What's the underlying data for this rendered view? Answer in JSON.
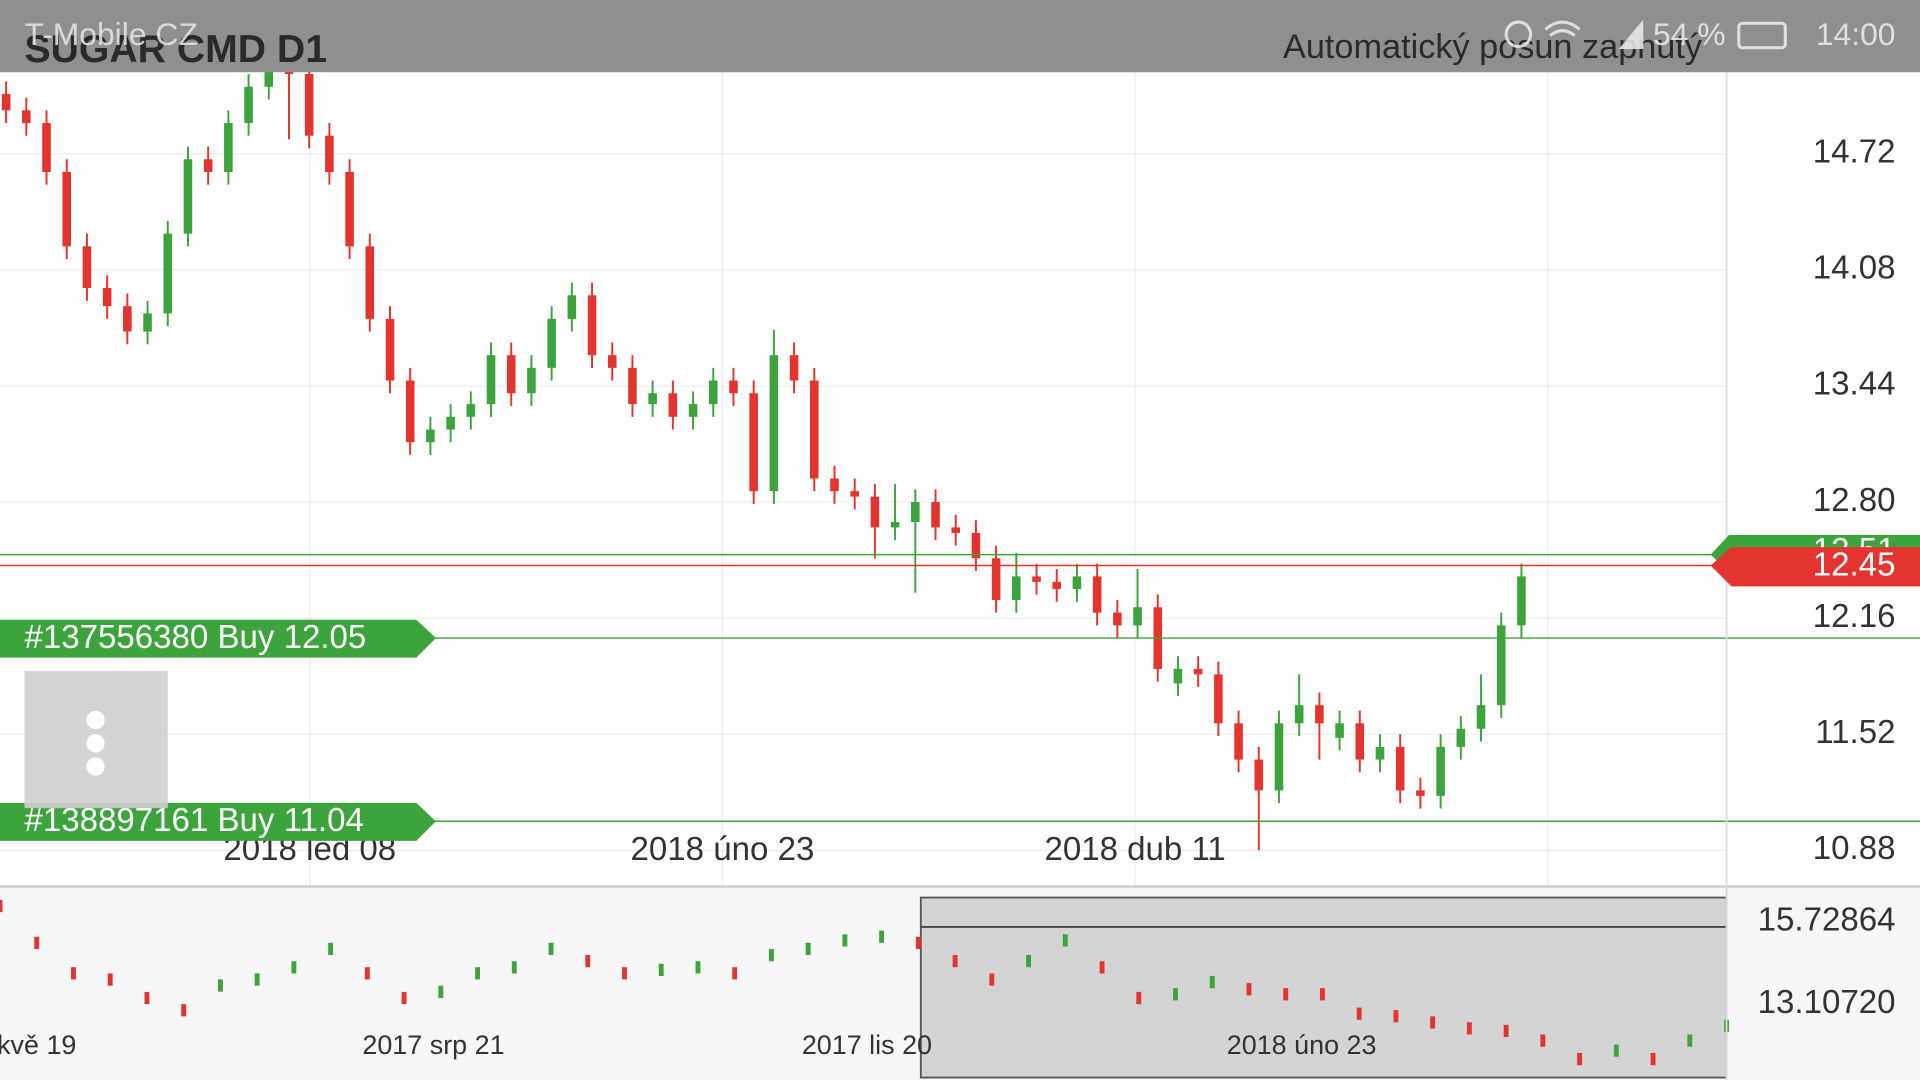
{
  "status_bar": {
    "carrier": "T-Mobile CZ",
    "battery": "54 %",
    "time": "14:00"
  },
  "header": {
    "title": "SUGAR CMD D1",
    "auto_scroll": "Automatický posun zapnutý"
  },
  "chart_data": [
    {
      "type": "candlestick",
      "open": [
        15.05,
        14.96,
        14.89,
        14.62,
        14.21,
        13.98,
        13.88,
        13.74,
        13.84,
        14.28,
        14.69,
        14.62,
        14.89,
        15.09,
        15.19,
        15.16,
        14.82,
        14.62,
        14.21,
        13.81,
        13.47,
        13.13,
        13.2,
        13.27,
        13.34,
        13.61,
        13.4,
        13.54,
        13.81,
        13.94,
        13.61,
        13.54,
        13.34,
        13.4,
        13.27,
        13.34,
        13.47,
        13.4,
        12.86,
        13.61,
        13.47,
        12.93,
        12.86,
        12.83,
        12.66,
        12.69,
        12.8,
        12.66,
        12.63,
        12.49,
        12.26,
        12.39,
        12.36,
        12.32,
        12.39,
        12.19,
        12.12,
        12.22,
        11.8,
        11.88,
        11.85,
        11.58,
        11.38,
        11.21,
        11.58,
        11.68,
        11.5,
        11.58,
        11.38,
        11.45,
        11.21,
        11.18,
        11.45,
        11.55,
        11.68,
        12.12
      ],
      "high": [
        15.12,
        15.03,
        14.96,
        14.69,
        14.28,
        14.05,
        13.95,
        13.91,
        14.35,
        14.76,
        14.76,
        14.96,
        15.16,
        15.26,
        15.26,
        15.23,
        14.89,
        14.69,
        14.28,
        13.88,
        13.54,
        13.27,
        13.34,
        13.41,
        13.68,
        13.68,
        13.61,
        13.88,
        14.01,
        14.01,
        13.68,
        13.61,
        13.47,
        13.47,
        13.41,
        13.54,
        13.54,
        13.47,
        13.75,
        13.68,
        13.54,
        13.0,
        12.93,
        12.9,
        12.9,
        12.87,
        12.87,
        12.73,
        12.7,
        12.56,
        12.52,
        12.46,
        12.43,
        12.46,
        12.46,
        12.26,
        12.43,
        12.29,
        11.95,
        11.95,
        11.92,
        11.65,
        11.45,
        11.65,
        11.85,
        11.75,
        11.65,
        11.65,
        11.52,
        11.52,
        11.28,
        11.52,
        11.62,
        11.85,
        12.19,
        12.46
      ],
      "low": [
        14.89,
        14.82,
        14.55,
        14.14,
        13.91,
        13.81,
        13.67,
        13.67,
        13.77,
        14.21,
        14.55,
        14.55,
        14.82,
        15.02,
        14.8,
        14.75,
        14.55,
        14.14,
        13.74,
        13.4,
        13.06,
        13.06,
        13.13,
        13.2,
        13.27,
        13.33,
        13.33,
        13.47,
        13.74,
        13.54,
        13.47,
        13.27,
        13.27,
        13.2,
        13.2,
        13.27,
        13.33,
        12.79,
        12.79,
        13.4,
        12.86,
        12.79,
        12.76,
        12.49,
        12.59,
        12.3,
        12.59,
        12.56,
        12.42,
        12.19,
        12.19,
        12.29,
        12.25,
        12.25,
        12.12,
        12.05,
        12.05,
        11.81,
        11.73,
        11.78,
        11.51,
        11.31,
        10.88,
        11.14,
        11.51,
        11.38,
        11.43,
        11.31,
        11.31,
        11.14,
        11.11,
        11.11,
        11.38,
        11.48,
        11.61,
        12.05
      ],
      "close": [
        14.96,
        14.89,
        14.62,
        14.21,
        13.98,
        13.88,
        13.74,
        13.84,
        14.28,
        14.69,
        14.62,
        14.89,
        15.09,
        15.19,
        15.16,
        14.82,
        14.62,
        14.21,
        13.81,
        13.47,
        13.13,
        13.2,
        13.27,
        13.34,
        13.61,
        13.4,
        13.54,
        13.81,
        13.94,
        13.61,
        13.54,
        13.34,
        13.4,
        13.27,
        13.34,
        13.47,
        13.4,
        12.86,
        13.61,
        13.47,
        12.93,
        12.86,
        12.83,
        12.66,
        12.69,
        12.8,
        12.66,
        12.63,
        12.49,
        12.26,
        12.39,
        12.36,
        12.32,
        12.39,
        12.19,
        12.12,
        12.22,
        11.88,
        11.88,
        11.85,
        11.58,
        11.38,
        11.21,
        11.58,
        11.68,
        11.58,
        11.58,
        11.38,
        11.45,
        11.21,
        11.18,
        11.45,
        11.55,
        11.68,
        12.12,
        12.39
      ],
      "colors": {
        "up": "#3da33d",
        "down": "#e3342f"
      },
      "ylim": [
        10.68,
        15.17
      ],
      "yticks": [
        14.72,
        14.08,
        13.44,
        {
          "value": 12.8,
          "label": "12.80"
        },
        12.16,
        11.52,
        10.88
      ],
      "grid": true,
      "x_labels": [
        "2018 led 08",
        "2018 úno 23",
        "2018 dub 11"
      ],
      "ask": 12.51,
      "bid": 12.45,
      "orders": [
        {
          "label": "#137556380 Buy 12.05",
          "price": 12.05
        },
        {
          "label": "#138897161 Buy 11.04",
          "price": 11.04
        }
      ]
    },
    {
      "type": "navigator",
      "values": [
        16.24,
        15.06,
        14.09,
        13.89,
        13.3,
        12.91,
        13.7,
        13.89,
        14.28,
        14.87,
        14.09,
        13.3,
        13.5,
        14.09,
        14.28,
        14.87,
        14.48,
        14.09,
        14.2,
        14.28,
        14.09,
        14.67,
        14.87,
        15.14,
        15.26,
        15.06,
        14.48,
        13.89,
        14.48,
        15.14,
        14.28,
        13.3,
        13.42,
        13.81,
        13.58,
        13.42,
        13.42,
        12.8,
        12.72,
        12.52,
        12.33,
        12.25,
        11.94,
        11.35,
        11.62,
        11.35,
        11.94,
        12.41
      ],
      "colors": {
        "up": "#3da33d",
        "down": "#e3342f"
      },
      "ylim": [
        10.76,
        16.51
      ],
      "yticks": [
        15.72864,
        {
          "value": 13.1072,
          "label": "13.10720"
        }
      ],
      "x_labels": [
        "kvě 19",
        "2017 srp 21",
        "2017 lis 20",
        "2018 úno 23"
      ]
    }
  ]
}
